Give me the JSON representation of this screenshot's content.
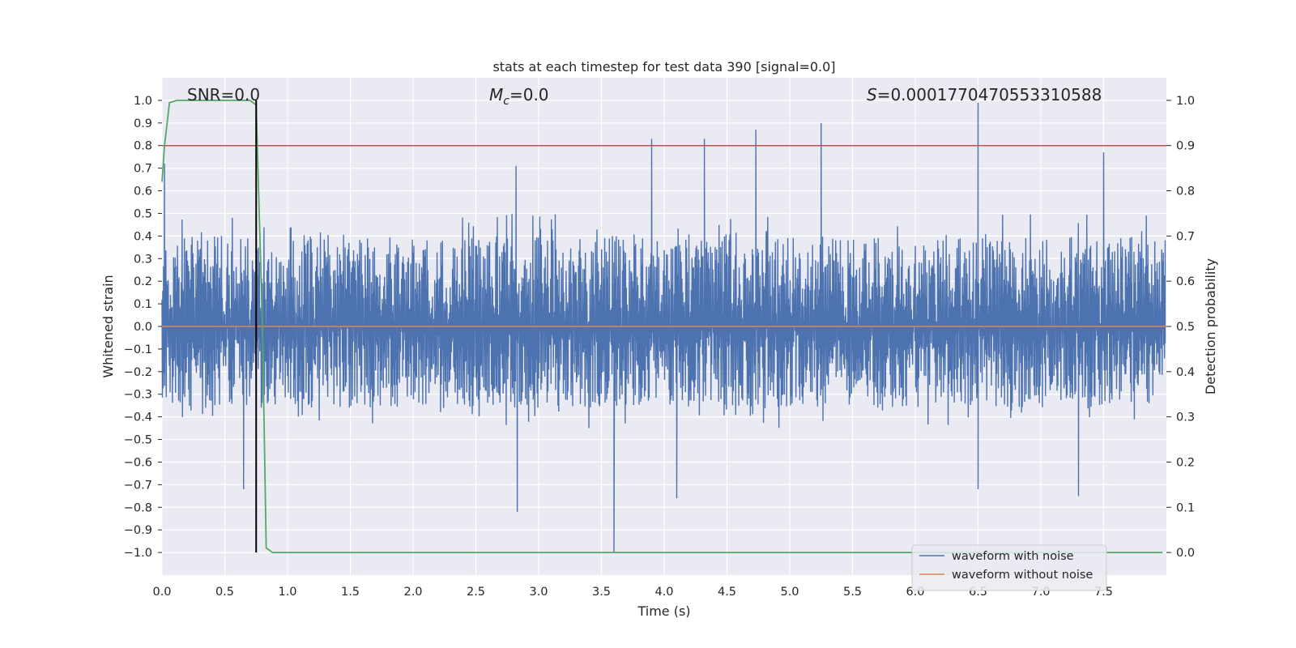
{
  "chart_data": {
    "type": "line",
    "title": "stats at each timestep for test data 390 [signal=0.0]",
    "xlabel": "Time (s)",
    "ylabel_left": "Whitened strain",
    "ylabel_right": "Detection probability",
    "xlim": [
      0.0,
      8.0
    ],
    "ylim_left": [
      -1.1,
      1.1
    ],
    "ylim_right": [
      -0.05,
      1.05
    ],
    "xticks": [
      "0.0",
      "0.5",
      "1.0",
      "1.5",
      "2.0",
      "2.5",
      "3.0",
      "3.5",
      "4.0",
      "4.5",
      "5.0",
      "5.5",
      "6.0",
      "6.5",
      "7.0",
      "7.5"
    ],
    "xtick_values": [
      0.0,
      0.5,
      1.0,
      1.5,
      2.0,
      2.5,
      3.0,
      3.5,
      4.0,
      4.5,
      5.0,
      5.5,
      6.0,
      6.5,
      7.0,
      7.5
    ],
    "yticks_left": [
      "1.0",
      "0.9",
      "0.8",
      "0.7",
      "0.6",
      "0.5",
      "0.4",
      "0.3",
      "0.2",
      "0.1",
      "0.0",
      "−0.1",
      "−0.2",
      "−0.3",
      "−0.4",
      "−0.5",
      "−0.6",
      "−0.7",
      "−0.8",
      "−0.9",
      "−1.0"
    ],
    "ytick_left_values": [
      1.0,
      0.9,
      0.8,
      0.7,
      0.6,
      0.5,
      0.4,
      0.3,
      0.2,
      0.1,
      0.0,
      -0.1,
      -0.2,
      -0.3,
      -0.4,
      -0.5,
      -0.6,
      -0.7,
      -0.8,
      -0.9,
      -1.0
    ],
    "yticks_right": [
      "1.0",
      "0.9",
      "0.8",
      "0.7",
      "0.6",
      "0.5",
      "0.4",
      "0.3",
      "0.2",
      "0.1",
      "0.0"
    ],
    "ytick_right_values": [
      1.0,
      0.9,
      0.8,
      0.7,
      0.6,
      0.5,
      0.4,
      0.3,
      0.2,
      0.1,
      0.0
    ],
    "annotations": {
      "snr": "SNR=0.0",
      "mc_symbol": "M",
      "mc_sub": "c",
      "mc_value": "=0.0",
      "s_symbol": "S",
      "s_value": "=0.0001770470553310588"
    },
    "series": [
      {
        "name": "waveform with noise",
        "axis": "left",
        "color": "#4c72b0",
        "typical_range": [
          -0.45,
          0.5
        ],
        "peaks": [
          {
            "x": 0.02,
            "y": 0.72
          },
          {
            "x": 0.65,
            "y": -0.72
          },
          {
            "x": 2.83,
            "y": -0.82
          },
          {
            "x": 2.82,
            "y": 0.71
          },
          {
            "x": 3.6,
            "y": -1.0
          },
          {
            "x": 3.9,
            "y": 0.83
          },
          {
            "x": 4.32,
            "y": 0.83
          },
          {
            "x": 4.73,
            "y": 0.87
          },
          {
            "x": 5.25,
            "y": 0.9
          },
          {
            "x": 6.5,
            "y": 0.99
          },
          {
            "x": 7.3,
            "y": -0.75
          },
          {
            "x": 7.5,
            "y": 0.77
          },
          {
            "x": 4.1,
            "y": -0.76
          },
          {
            "x": 6.5,
            "y": -0.72
          }
        ]
      },
      {
        "name": "waveform without noise",
        "axis": "left",
        "color": "#dd8452",
        "x": [
          0.0,
          8.0
        ],
        "y": [
          0.0,
          0.0
        ]
      },
      {
        "name": "detection probability",
        "axis": "right",
        "color": "#55a868",
        "x": [
          0.0,
          0.02,
          0.06,
          0.12,
          0.5,
          0.7,
          0.75,
          0.8,
          0.83,
          0.88,
          8.0
        ],
        "y": [
          0.82,
          0.9,
          0.995,
          1.0,
          1.0,
          1.0,
          0.99,
          0.5,
          0.01,
          0.0,
          0.0
        ]
      }
    ],
    "threshold": {
      "axis": "right",
      "value": 0.9,
      "color": "#c44e52"
    },
    "marker_line": {
      "x": 0.75,
      "y_from": -1.0,
      "y_to": 1.0,
      "color": "#000000"
    },
    "legend": {
      "position": "lower-right",
      "entries": [
        {
          "label": "waveform with noise",
          "color": "#4c72b0"
        },
        {
          "label": "waveform without noise",
          "color": "#dd8452"
        }
      ]
    },
    "grid": true,
    "background": "#eaeaf2"
  }
}
